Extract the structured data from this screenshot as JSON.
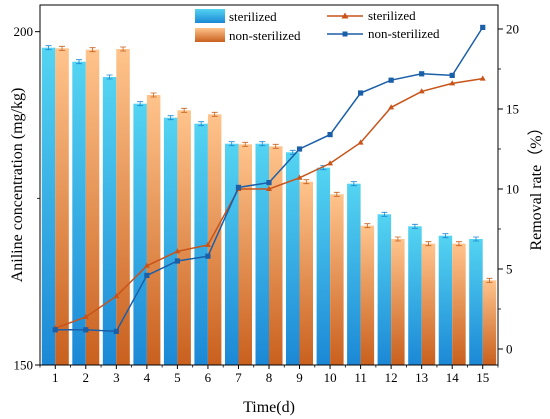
{
  "chart_data": {
    "type": "bar",
    "xlabel": "Time(d)",
    "ylabel_left": "Aniline concentration (mg/kg)",
    "ylabel_right": "Removal rate（%）",
    "categories": [
      "1",
      "2",
      "3",
      "4",
      "5",
      "6",
      "7",
      "8",
      "9",
      "10",
      "11",
      "12",
      "13",
      "14",
      "15"
    ],
    "y_left": {
      "min": 150,
      "max": 204,
      "ticks": [
        150,
        200
      ]
    },
    "y_right": {
      "min": -1,
      "max": 21.5,
      "ticks": [
        0,
        5,
        10,
        15,
        20
      ]
    },
    "bar_series": [
      {
        "name": "sterilized",
        "axis": "left",
        "values": [
          197.6,
          195.5,
          193.2,
          189.2,
          187.1,
          186.2,
          183.2,
          183.2,
          181.9,
          179.6,
          177.2,
          172.6,
          170.8,
          169.4,
          168.9
        ]
      },
      {
        "name": "non-sterilized",
        "axis": "left",
        "values": [
          197.5,
          197.3,
          197.4,
          190.5,
          188.2,
          187.6,
          183.1,
          182.8,
          177.5,
          175.6,
          170.9,
          168.9,
          168.2,
          168.2,
          162.7
        ]
      }
    ],
    "line_series": [
      {
        "name": "sterilized",
        "axis": "right",
        "marker": "triangle",
        "values": [
          1.3,
          2.0,
          3.3,
          5.2,
          6.1,
          6.5,
          10.0,
          10.0,
          10.7,
          11.6,
          12.9,
          15.1,
          16.1,
          16.6,
          16.9
        ]
      },
      {
        "name": "non-sterilized",
        "axis": "right",
        "marker": "square",
        "values": [
          1.2,
          1.2,
          1.1,
          4.6,
          5.5,
          5.8,
          10.1,
          10.4,
          12.5,
          13.4,
          16.0,
          16.8,
          17.2,
          17.1,
          20.1
        ]
      }
    ],
    "legend": {
      "placement": "top",
      "bars": [
        "sterilized",
        "non-sterilized"
      ],
      "lines": [
        "sterilized",
        "non-sterilized"
      ]
    },
    "grid": false
  },
  "colors": {
    "sterilized_bar_top": "#54d4f2",
    "sterilized_bar_bottom": "#1c88d6",
    "nonsterilized_bar_top": "#ffc48c",
    "nonsterilized_bar_bottom": "#c9601e",
    "sterilized_line": "#c8541a",
    "nonsterilized_line": "#1a5fa8",
    "axis": "#000000"
  }
}
